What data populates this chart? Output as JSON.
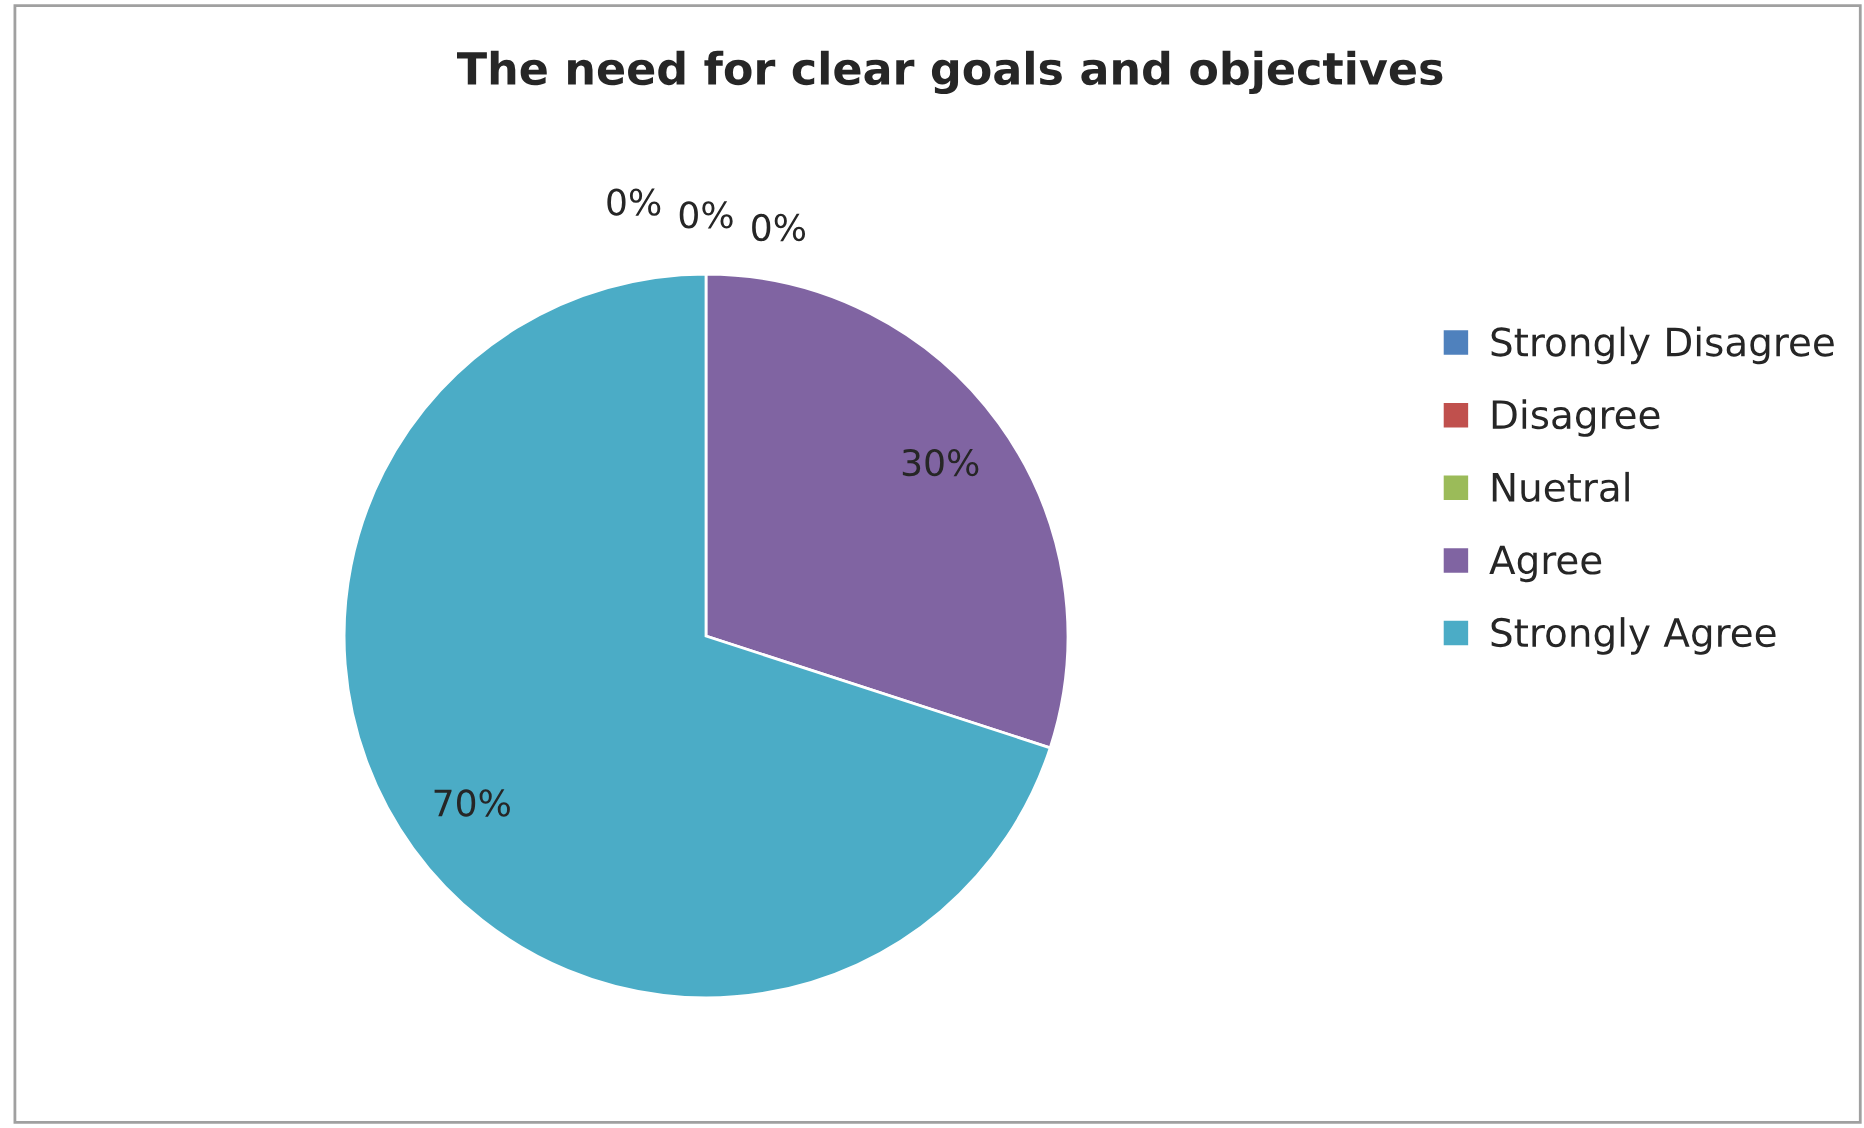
{
  "chart_data": {
    "type": "pie",
    "title": "The need for clear goals and objectives",
    "categories": [
      "Strongly Disagree",
      "Disagree",
      "Nuetral",
      "Agree",
      "Strongly Agree"
    ],
    "values": [
      0,
      0,
      0,
      30,
      70
    ],
    "colors": [
      "#4f81bd",
      "#c0504d",
      "#9bbb59",
      "#8064a2",
      "#4bacc6"
    ],
    "value_labels": [
      "0%",
      "0%",
      "0%",
      "30%",
      "70%"
    ],
    "legend": "right"
  }
}
